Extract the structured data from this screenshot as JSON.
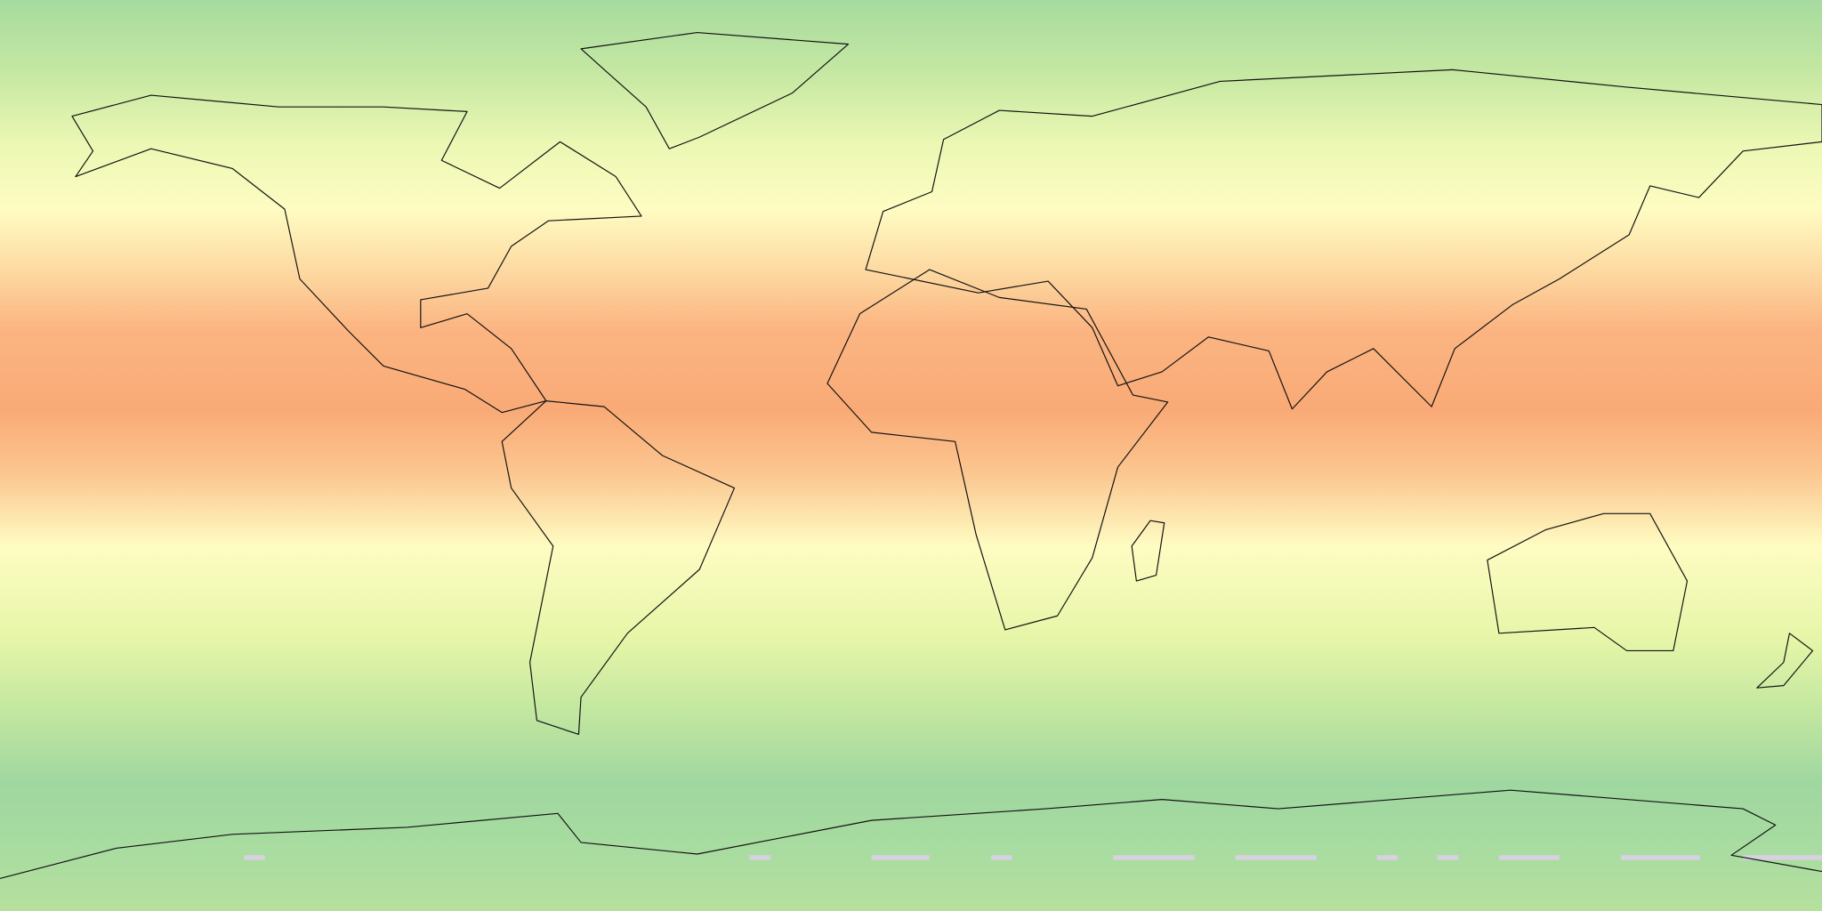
{
  "map": {
    "projection": "equirectangular",
    "field_colormap": [
      "#a3d9a4",
      "#d9f0a3",
      "#fefcc2",
      "#fdd49e",
      "#f9a974"
    ],
    "coastline_color": "#111111",
    "missing_data_color": "#d9d0e4",
    "landmasses": [
      "north-america",
      "greenland",
      "south-america",
      "eurasia",
      "africa",
      "australia",
      "antarctica"
    ]
  }
}
